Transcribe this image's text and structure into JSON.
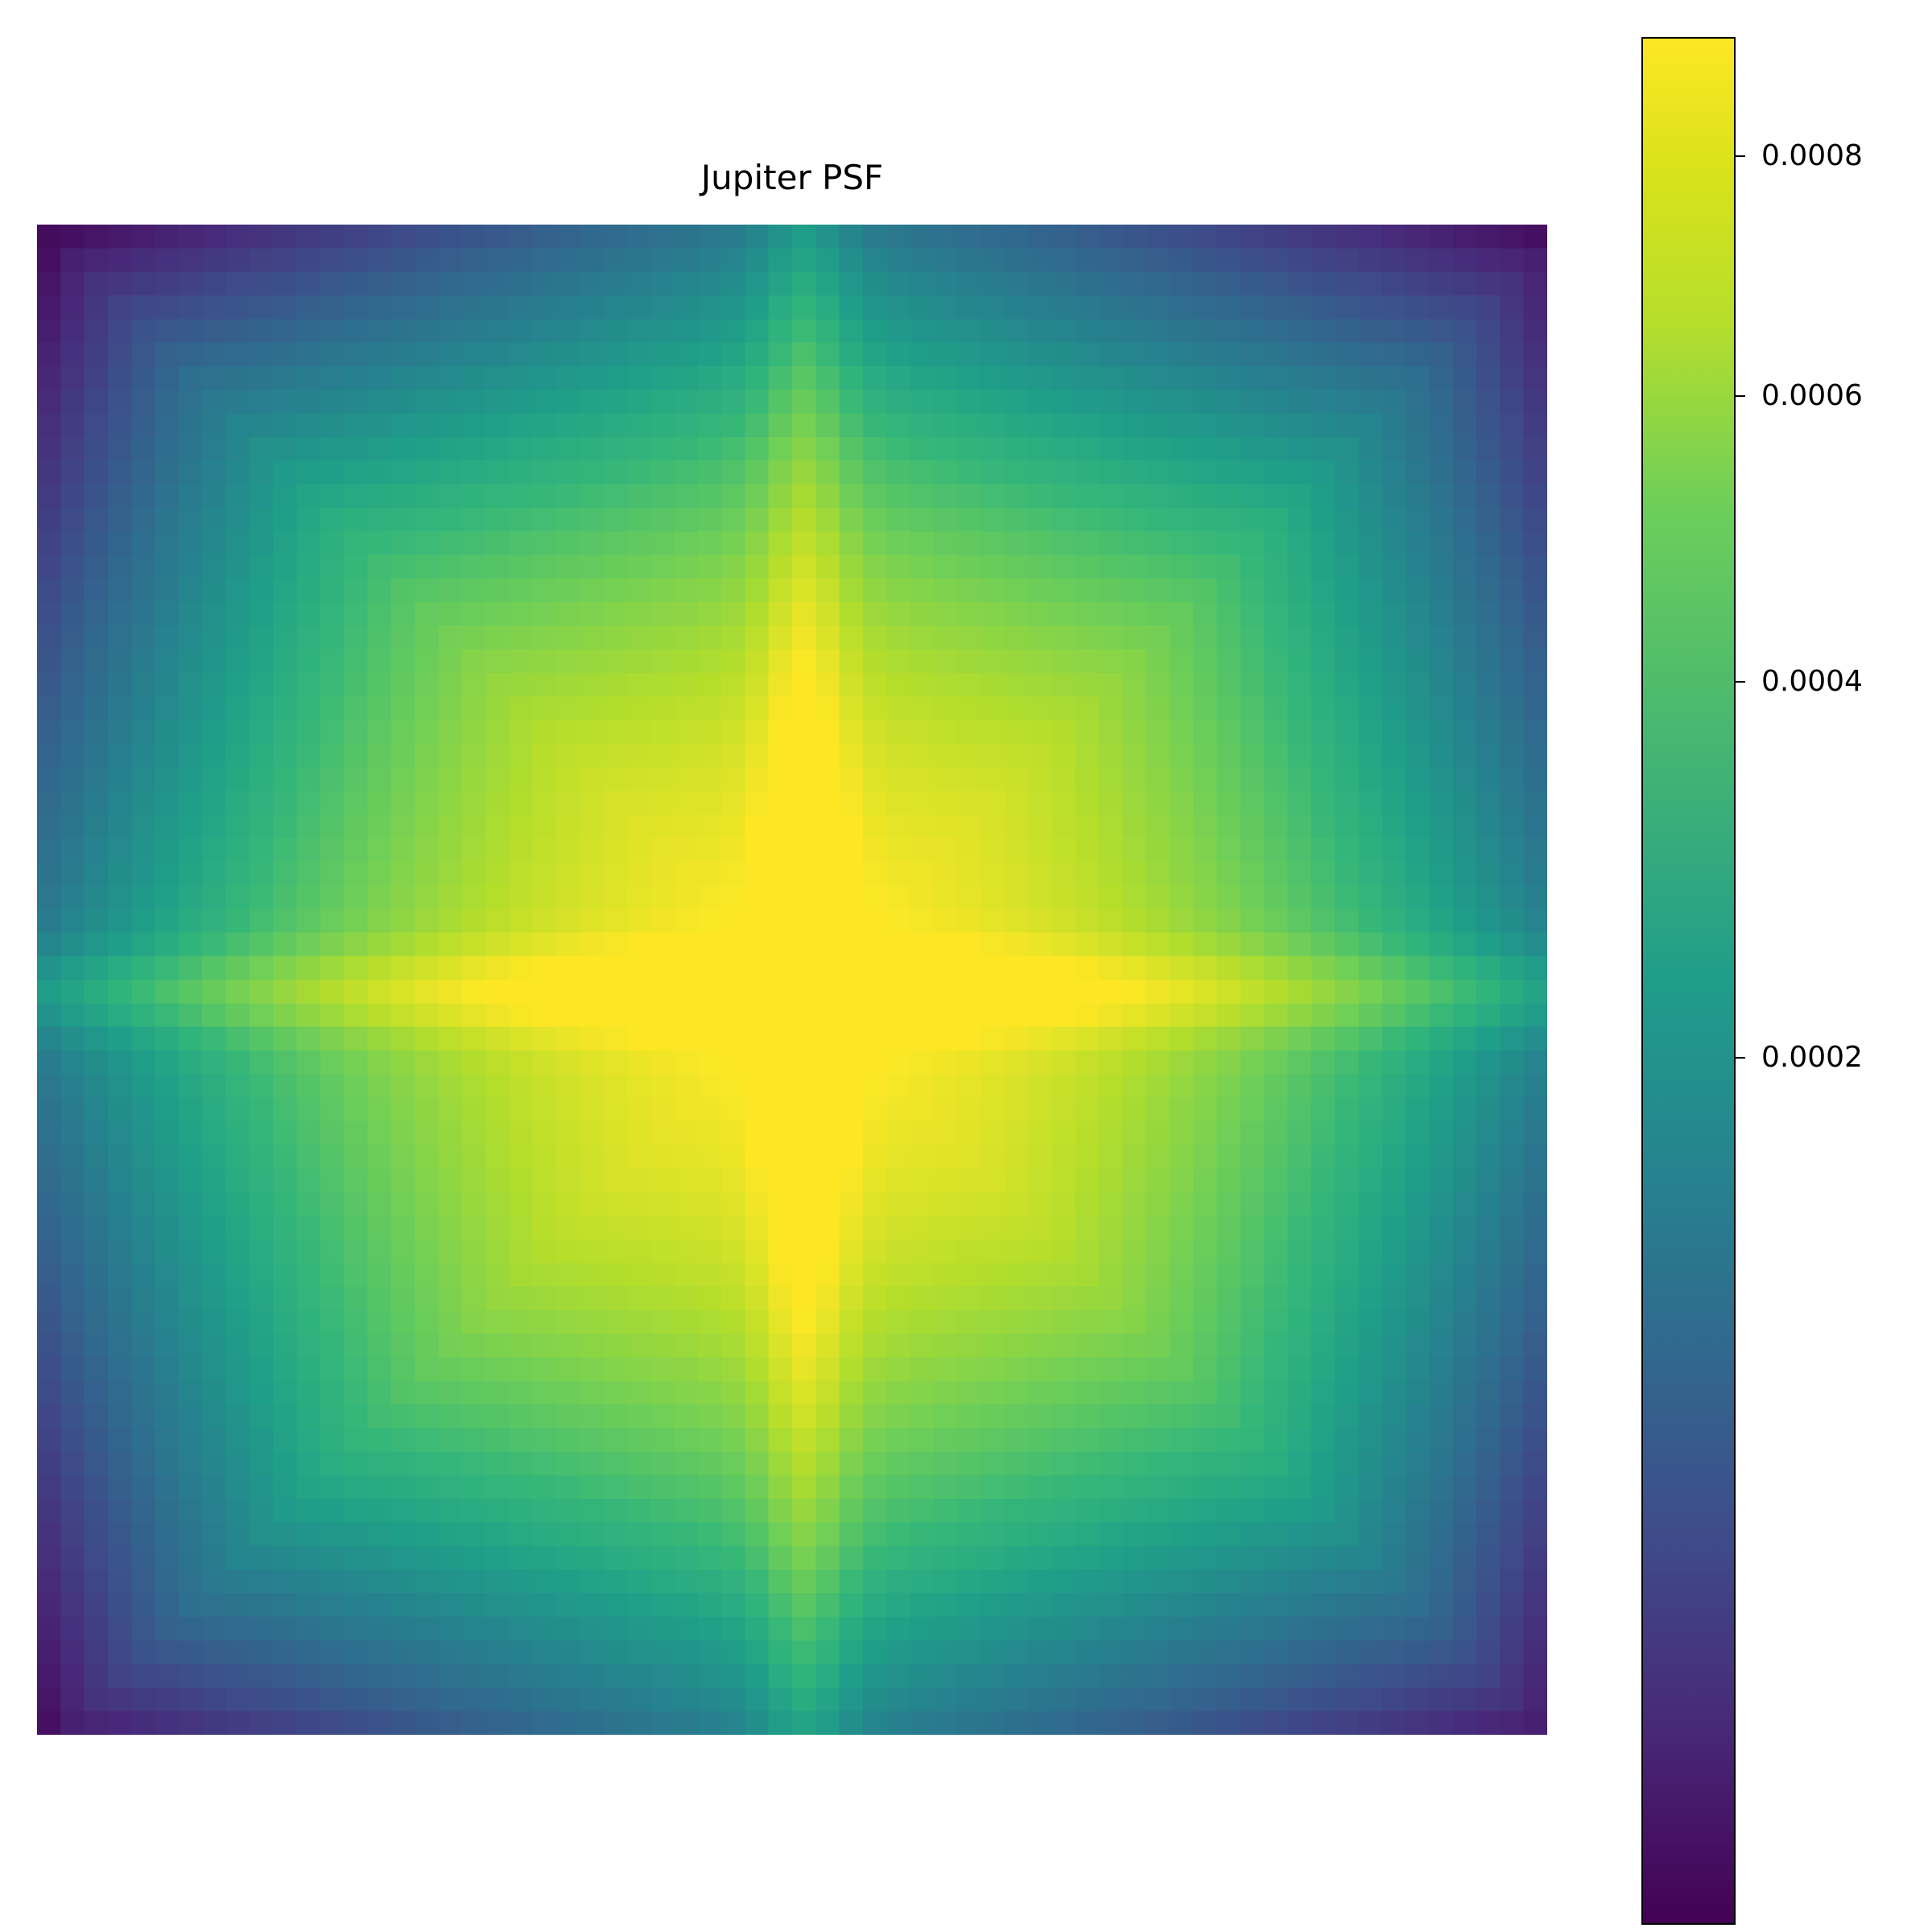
{
  "chart_data": {
    "type": "heatmap",
    "title": "Jupiter PSF",
    "grid_size": [
      64,
      64
    ],
    "colormap": "viridis",
    "value_range": [
      1e-05,
      0.00091
    ],
    "peak": {
      "row": 32,
      "col": 32,
      "value": 0.00091
    },
    "colorbar": {
      "placement": "right",
      "ticks": [
        {
          "value": 0.0008,
          "label": "0.0008"
        },
        {
          "value": 0.0006,
          "label": "0.0006"
        },
        {
          "value": 0.0004,
          "label": "0.0004"
        },
        {
          "value": 0.0002,
          "label": "0.0002"
        }
      ]
    },
    "axes_visible": false
  }
}
